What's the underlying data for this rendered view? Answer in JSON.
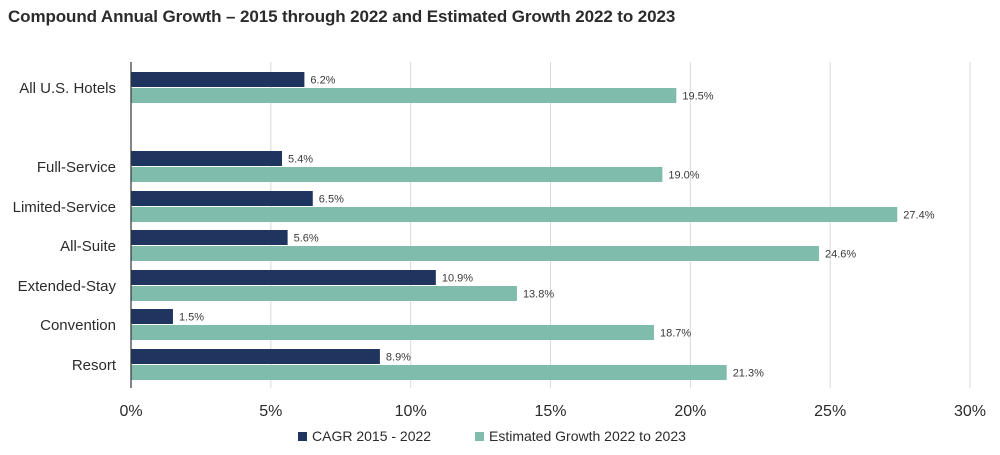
{
  "chart_data": {
    "type": "bar",
    "orientation": "horizontal",
    "title": "Compound Annual Growth – 2015 through 2022 and Estimated Growth 2022 to 2023",
    "categories": [
      "All U.S. Hotels",
      "Full-Service",
      "Limited-Service",
      "All-Suite",
      "Extended-Stay",
      "Convention",
      "Resort"
    ],
    "series": [
      {
        "name": "CAGR 2015 - 2022",
        "color": "#1f3560",
        "values": [
          6.2,
          5.4,
          6.5,
          5.6,
          10.9,
          1.5,
          8.9
        ],
        "labels": [
          "6.2%",
          "5.4%",
          "6.5%",
          "5.6%",
          "10.9%",
          "1.5%",
          "8.9%"
        ]
      },
      {
        "name": "Estimated Growth 2022 to 2023",
        "color": "#80bcac",
        "values": [
          19.5,
          19.0,
          27.4,
          24.6,
          13.8,
          18.7,
          21.3
        ],
        "labels": [
          "19.5%",
          "19.0%",
          "27.4%",
          "24.6%",
          "13.8%",
          "18.7%",
          "21.3%"
        ]
      }
    ],
    "xlim": [
      0,
      30
    ],
    "xticks": [
      0,
      5,
      10,
      15,
      20,
      25,
      30
    ],
    "xtick_labels": [
      "0%",
      "5%",
      "10%",
      "15%",
      "20%",
      "25%",
      "30%"
    ],
    "grid": true,
    "legend_position": "bottom-center"
  }
}
